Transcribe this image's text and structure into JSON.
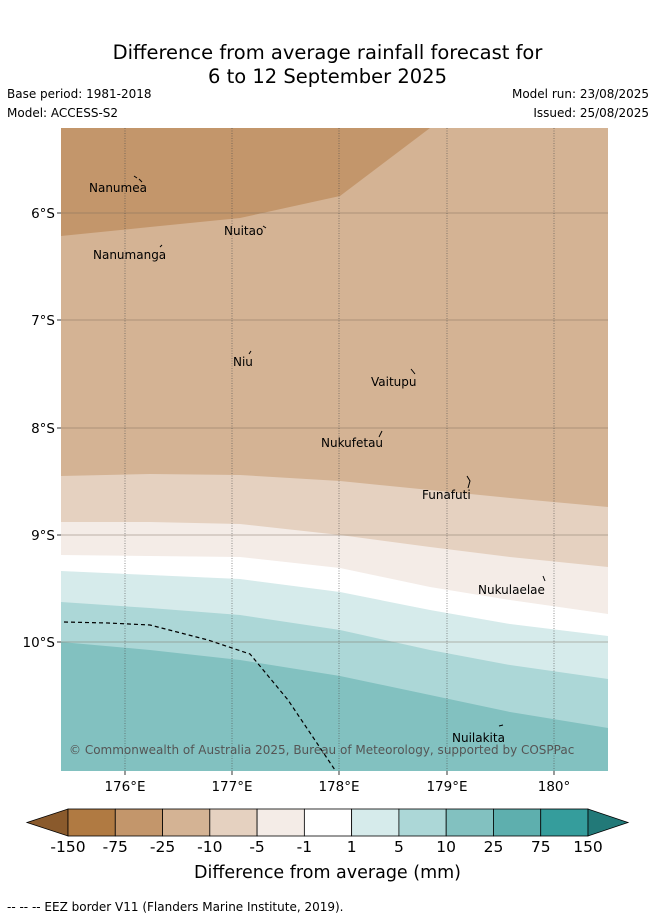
{
  "title": {
    "line1": "Difference from average rainfall forecast for",
    "line2": "6 to 12 September 2025"
  },
  "meta": {
    "base_period": "Base period: 1981-2018",
    "model": "Model: ACCESS-S2",
    "model_run": "Model run: 23/08/2025",
    "issued": "Issued: 25/08/2025"
  },
  "map": {
    "lat_labels": [
      "6°S",
      "7°S",
      "8°S",
      "9°S",
      "10°S"
    ],
    "lon_labels": [
      "176°E",
      "177°E",
      "178°E",
      "179°E",
      "180°"
    ],
    "places": [
      {
        "name": "Nanumea"
      },
      {
        "name": "Nuitao"
      },
      {
        "name": "Nanumanga"
      },
      {
        "name": "Niu"
      },
      {
        "name": "Vaitupu"
      },
      {
        "name": "Nukufetau"
      },
      {
        "name": "Funafuti"
      },
      {
        "name": "Nukulaelae"
      },
      {
        "name": "Nuilakita"
      }
    ],
    "copyright": "© Commonwealth of Australia 2025, Bureau of Meteorology, supported by COSPPac"
  },
  "legend": {
    "colors": [
      "#8a5a2c",
      "#b07a42",
      "#c3966b",
      "#d4b394",
      "#e5d1c0",
      "#f4ece7",
      "#ffffff",
      "#d6ebeb",
      "#acd7d7",
      "#82c1c0",
      "#5eafae",
      "#359d9c",
      "#227978"
    ],
    "ticks": [
      "-150",
      "-75",
      "-25",
      "-10",
      "-5",
      "-1",
      "1",
      "5",
      "10",
      "25",
      "75",
      "150"
    ],
    "title": "Difference from average (mm)"
  },
  "footer": "-- -- -- EEZ border V11 (Flanders Marine Institute, 2019)."
}
